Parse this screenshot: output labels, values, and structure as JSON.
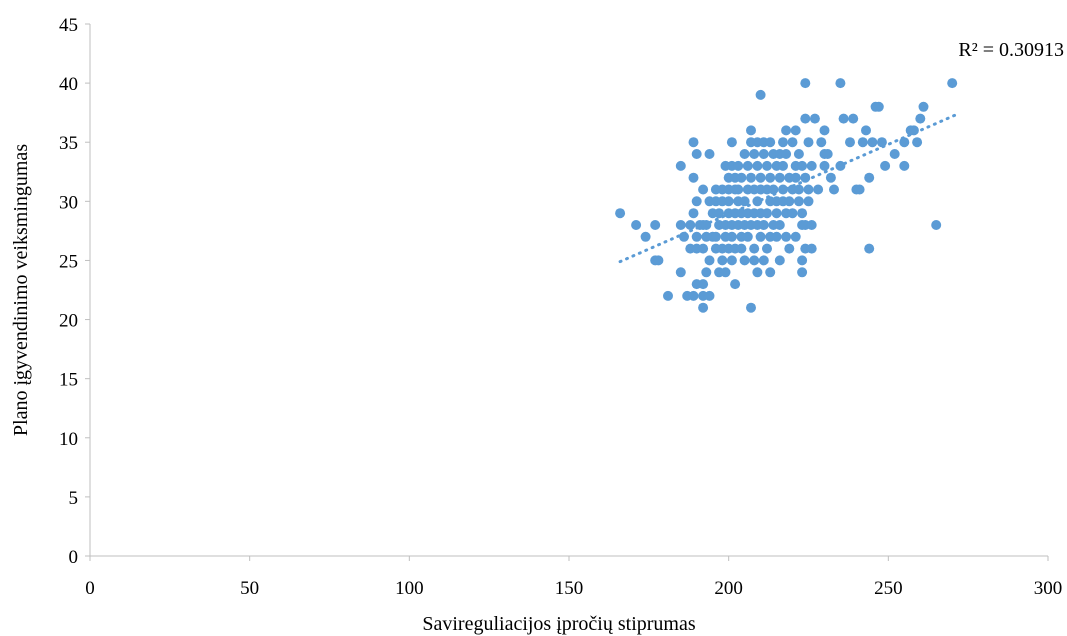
{
  "chart_data": {
    "type": "scatter",
    "xlabel": "Savireguliacijos įpročių stiprumas",
    "ylabel": "Plano įgyvendinimo veiksmingumas",
    "xlim": [
      0,
      300
    ],
    "ylim": [
      0,
      45
    ],
    "xticks": [
      0,
      50,
      100,
      150,
      200,
      250,
      300
    ],
    "yticks": [
      0,
      5,
      10,
      15,
      20,
      25,
      30,
      35,
      40,
      45
    ],
    "grid": false,
    "color": "#5B9BD5",
    "trendline": {
      "type": "linear",
      "style": "dotted",
      "x": [
        166,
        271
      ],
      "y": [
        24.9,
        37.3
      ],
      "r2_label": "R² = 0.30913"
    },
    "series": [
      {
        "points": [
          [
            166,
            29
          ],
          [
            171,
            28
          ],
          [
            174,
            27
          ],
          [
            177,
            28
          ],
          [
            177,
            25
          ],
          [
            178,
            25
          ],
          [
            181,
            22
          ],
          [
            185,
            24
          ],
          [
            185,
            33
          ],
          [
            185,
            28
          ],
          [
            186,
            27
          ],
          [
            187,
            22
          ],
          [
            188,
            26
          ],
          [
            188,
            28
          ],
          [
            189,
            35
          ],
          [
            189,
            29
          ],
          [
            189,
            22
          ],
          [
            189,
            32
          ],
          [
            190,
            23
          ],
          [
            190,
            27
          ],
          [
            190,
            34
          ],
          [
            190,
            30
          ],
          [
            190,
            26
          ],
          [
            191,
            28
          ],
          [
            192,
            22
          ],
          [
            192,
            26
          ],
          [
            192,
            21
          ],
          [
            192,
            23
          ],
          [
            192,
            28
          ],
          [
            192,
            31
          ],
          [
            193,
            24
          ],
          [
            193,
            28
          ],
          [
            193,
            27
          ],
          [
            194,
            34
          ],
          [
            194,
            25
          ],
          [
            194,
            30
          ],
          [
            194,
            22
          ],
          [
            195,
            27
          ],
          [
            195,
            29
          ],
          [
            196,
            26
          ],
          [
            196,
            30
          ],
          [
            196,
            27
          ],
          [
            196,
            31
          ],
          [
            197,
            24
          ],
          [
            197,
            28
          ],
          [
            197,
            29
          ],
          [
            198,
            25
          ],
          [
            198,
            26
          ],
          [
            198,
            30
          ],
          [
            198,
            31
          ],
          [
            199,
            28
          ],
          [
            199,
            24
          ],
          [
            199,
            33
          ],
          [
            199,
            27
          ],
          [
            200,
            29
          ],
          [
            200,
            31
          ],
          [
            200,
            26
          ],
          [
            200,
            30
          ],
          [
            200,
            32
          ],
          [
            201,
            35
          ],
          [
            201,
            33
          ],
          [
            201,
            25
          ],
          [
            201,
            28
          ],
          [
            201,
            27
          ],
          [
            202,
            29
          ],
          [
            202,
            31
          ],
          [
            202,
            32
          ],
          [
            202,
            23
          ],
          [
            202,
            26
          ],
          [
            203,
            28
          ],
          [
            203,
            30
          ],
          [
            203,
            33
          ],
          [
            203,
            31
          ],
          [
            204,
            27
          ],
          [
            204,
            29
          ],
          [
            204,
            32
          ],
          [
            204,
            26
          ],
          [
            205,
            30
          ],
          [
            205,
            34
          ],
          [
            205,
            25
          ],
          [
            205,
            28
          ],
          [
            206,
            27
          ],
          [
            206,
            31
          ],
          [
            206,
            33
          ],
          [
            206,
            29
          ],
          [
            207,
            36
          ],
          [
            207,
            35
          ],
          [
            207,
            28
          ],
          [
            207,
            21
          ],
          [
            207,
            32
          ],
          [
            208,
            26
          ],
          [
            208,
            29
          ],
          [
            208,
            31
          ],
          [
            208,
            34
          ],
          [
            208,
            25
          ],
          [
            209,
            33
          ],
          [
            209,
            28
          ],
          [
            209,
            30
          ],
          [
            209,
            24
          ],
          [
            209,
            35
          ],
          [
            210,
            39
          ],
          [
            210,
            32
          ],
          [
            210,
            27
          ],
          [
            210,
            31
          ],
          [
            210,
            29
          ],
          [
            211,
            34
          ],
          [
            211,
            28
          ],
          [
            211,
            35
          ],
          [
            211,
            25
          ],
          [
            212,
            33
          ],
          [
            212,
            29
          ],
          [
            212,
            31
          ],
          [
            212,
            26
          ],
          [
            213,
            24
          ],
          [
            213,
            32
          ],
          [
            213,
            35
          ],
          [
            213,
            27
          ],
          [
            213,
            30
          ],
          [
            214,
            34
          ],
          [
            214,
            28
          ],
          [
            214,
            31
          ],
          [
            215,
            33
          ],
          [
            215,
            29
          ],
          [
            215,
            27
          ],
          [
            215,
            30
          ],
          [
            216,
            32
          ],
          [
            216,
            34
          ],
          [
            216,
            28
          ],
          [
            216,
            25
          ],
          [
            217,
            31
          ],
          [
            217,
            35
          ],
          [
            217,
            30
          ],
          [
            217,
            33
          ],
          [
            218,
            29
          ],
          [
            218,
            36
          ],
          [
            218,
            34
          ],
          [
            218,
            27
          ],
          [
            219,
            32
          ],
          [
            219,
            26
          ],
          [
            219,
            30
          ],
          [
            220,
            31
          ],
          [
            220,
            35
          ],
          [
            220,
            29
          ],
          [
            221,
            33
          ],
          [
            221,
            27
          ],
          [
            221,
            36
          ],
          [
            221,
            32
          ],
          [
            222,
            30
          ],
          [
            222,
            34
          ],
          [
            222,
            31
          ],
          [
            223,
            28
          ],
          [
            223,
            29
          ],
          [
            223,
            24
          ],
          [
            223,
            33
          ],
          [
            223,
            25
          ],
          [
            224,
            37
          ],
          [
            224,
            40
          ],
          [
            224,
            32
          ],
          [
            224,
            28
          ],
          [
            224,
            26
          ],
          [
            225,
            31
          ],
          [
            225,
            30
          ],
          [
            225,
            35
          ],
          [
            226,
            26
          ],
          [
            226,
            33
          ],
          [
            226,
            28
          ],
          [
            227,
            37
          ],
          [
            228,
            31
          ],
          [
            229,
            35
          ],
          [
            230,
            34
          ],
          [
            230,
            36
          ],
          [
            230,
            33
          ],
          [
            231,
            34
          ],
          [
            232,
            32
          ],
          [
            233,
            31
          ],
          [
            235,
            40
          ],
          [
            235,
            33
          ],
          [
            236,
            37
          ],
          [
            238,
            35
          ],
          [
            239,
            37
          ],
          [
            240,
            31
          ],
          [
            241,
            31
          ],
          [
            242,
            35
          ],
          [
            243,
            36
          ],
          [
            244,
            32
          ],
          [
            244,
            26
          ],
          [
            245,
            35
          ],
          [
            246,
            38
          ],
          [
            247,
            38
          ],
          [
            248,
            35
          ],
          [
            249,
            33
          ],
          [
            252,
            34
          ],
          [
            255,
            35
          ],
          [
            255,
            33
          ],
          [
            257,
            36
          ],
          [
            258,
            36
          ],
          [
            259,
            35
          ],
          [
            260,
            37
          ],
          [
            261,
            38
          ],
          [
            265,
            28
          ],
          [
            270,
            40
          ]
        ]
      }
    ]
  }
}
